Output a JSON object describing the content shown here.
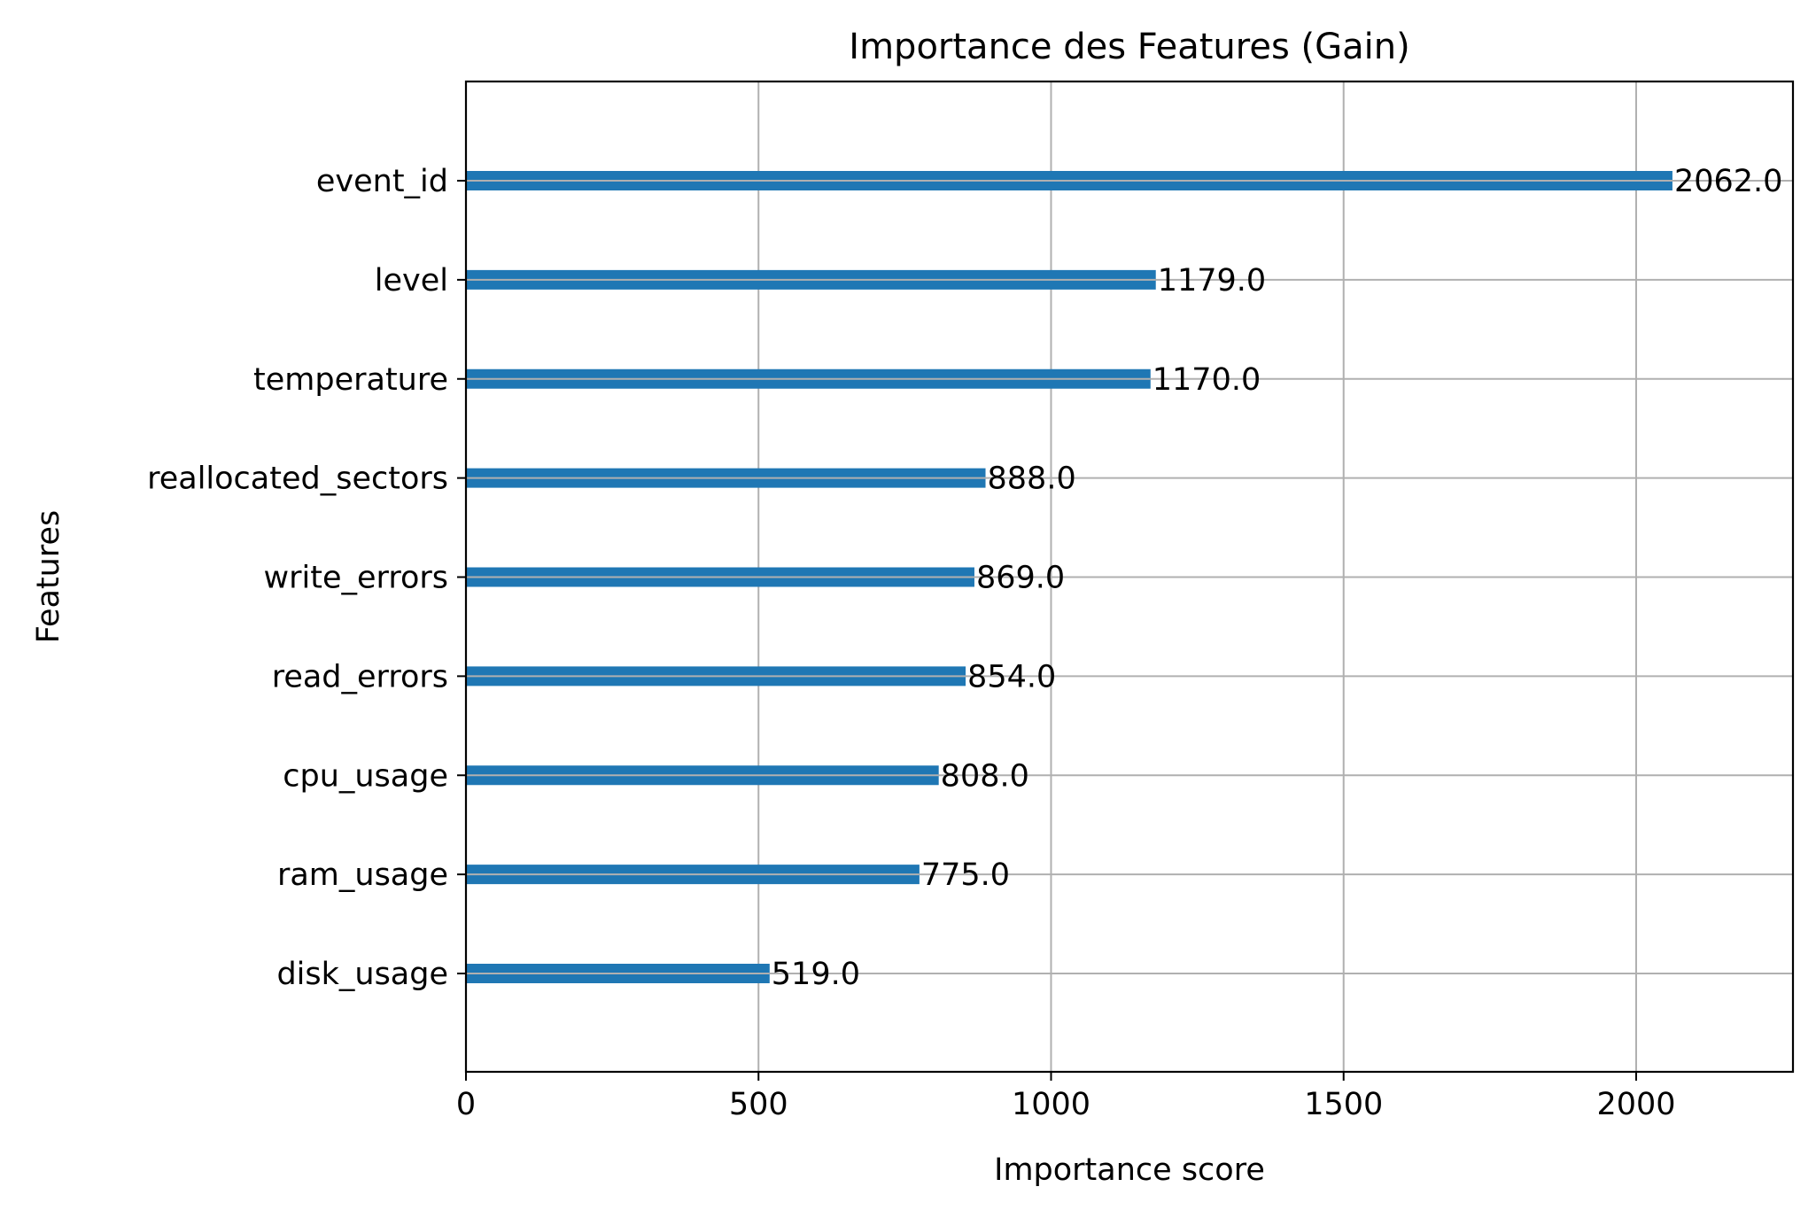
{
  "colors": {
    "bar": "#1f77b4",
    "grid": "#b0b0b0",
    "axis": "#000000",
    "background": "#ffffff"
  },
  "chart_data": {
    "type": "bar",
    "orientation": "horizontal",
    "title": "Importance des Features (Gain)",
    "xlabel": "Importance score",
    "ylabel": "Features",
    "categories": [
      "event_id",
      "level",
      "temperature",
      "reallocated_sectors",
      "write_errors",
      "read_errors",
      "cpu_usage",
      "ram_usage",
      "disk_usage"
    ],
    "values": [
      2062.0,
      1179.0,
      1170.0,
      888.0,
      869.0,
      854.0,
      808.0,
      775.0,
      519.0
    ],
    "data_labels": [
      "2062.0",
      "1179.0",
      "1170.0",
      "888.0",
      "869.0",
      "854.0",
      "808.0",
      "775.0",
      "519.0"
    ],
    "xlim": [
      0,
      2268
    ],
    "xticks": [
      0,
      500,
      1000,
      1500,
      2000
    ],
    "xtick_labels": [
      "0",
      "500",
      "1000",
      "1500",
      "2000"
    ],
    "grid": true,
    "legend": false
  }
}
